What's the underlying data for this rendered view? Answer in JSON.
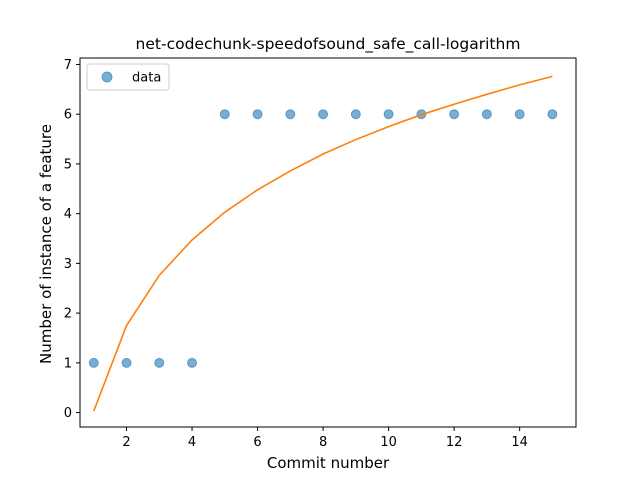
{
  "chart_data": {
    "type": "scatter",
    "title": "net-codechunk-speedofsound_safe_call-logarithm",
    "xlabel": "Commit number",
    "ylabel": "Number of instance of a feature",
    "xlim": [
      0.58,
      15.72
    ],
    "ylim": [
      -0.29,
      7.13
    ],
    "xticks": [
      2,
      4,
      6,
      8,
      10,
      12,
      14
    ],
    "yticks": [
      0,
      1,
      2,
      3,
      4,
      5,
      6,
      7
    ],
    "grid": false,
    "legend_position": "top-left",
    "series": [
      {
        "name": "data",
        "kind": "scatter",
        "color": "#1f77b4",
        "x": [
          1,
          2,
          3,
          4,
          5,
          6,
          7,
          8,
          9,
          10,
          11,
          12,
          13,
          14,
          15
        ],
        "y": [
          1,
          1,
          1,
          1,
          6,
          6,
          6,
          6,
          6,
          6,
          6,
          6,
          6,
          6,
          6
        ]
      },
      {
        "kind": "line",
        "color": "#ff7f0e",
        "x": [
          1,
          2,
          3,
          4,
          5,
          6,
          7,
          8,
          9,
          10,
          11,
          12,
          13,
          14,
          15
        ],
        "y": [
          0.03,
          1.75,
          2.76,
          3.47,
          4.03,
          4.48,
          4.86,
          5.2,
          5.49,
          5.75,
          5.99,
          6.2,
          6.4,
          6.59,
          6.76
        ]
      }
    ]
  }
}
